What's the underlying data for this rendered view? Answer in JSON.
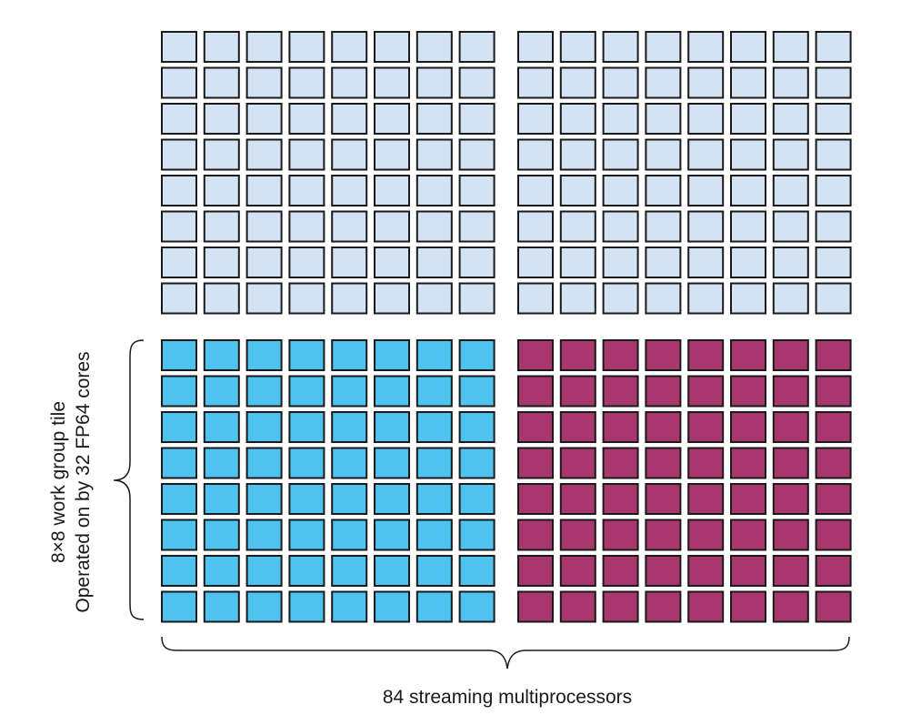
{
  "grid": {
    "rows_per_block": 8,
    "cols_per_block": 8,
    "blocks": [
      {
        "name": "top-left",
        "fill": "#d3e3f4"
      },
      {
        "name": "top-right",
        "fill": "#d3e3f4"
      },
      {
        "name": "bottom-left",
        "fill": "#4fc3f0"
      },
      {
        "name": "bottom-right",
        "fill": "#a8376e"
      }
    ],
    "stroke": "#1a1a1a"
  },
  "labels": {
    "tile_line1": "8×8 work group tile",
    "tile_line2": "Operated on by 32 FP64 cores",
    "bottom": "84 streaming multiprocessors"
  }
}
